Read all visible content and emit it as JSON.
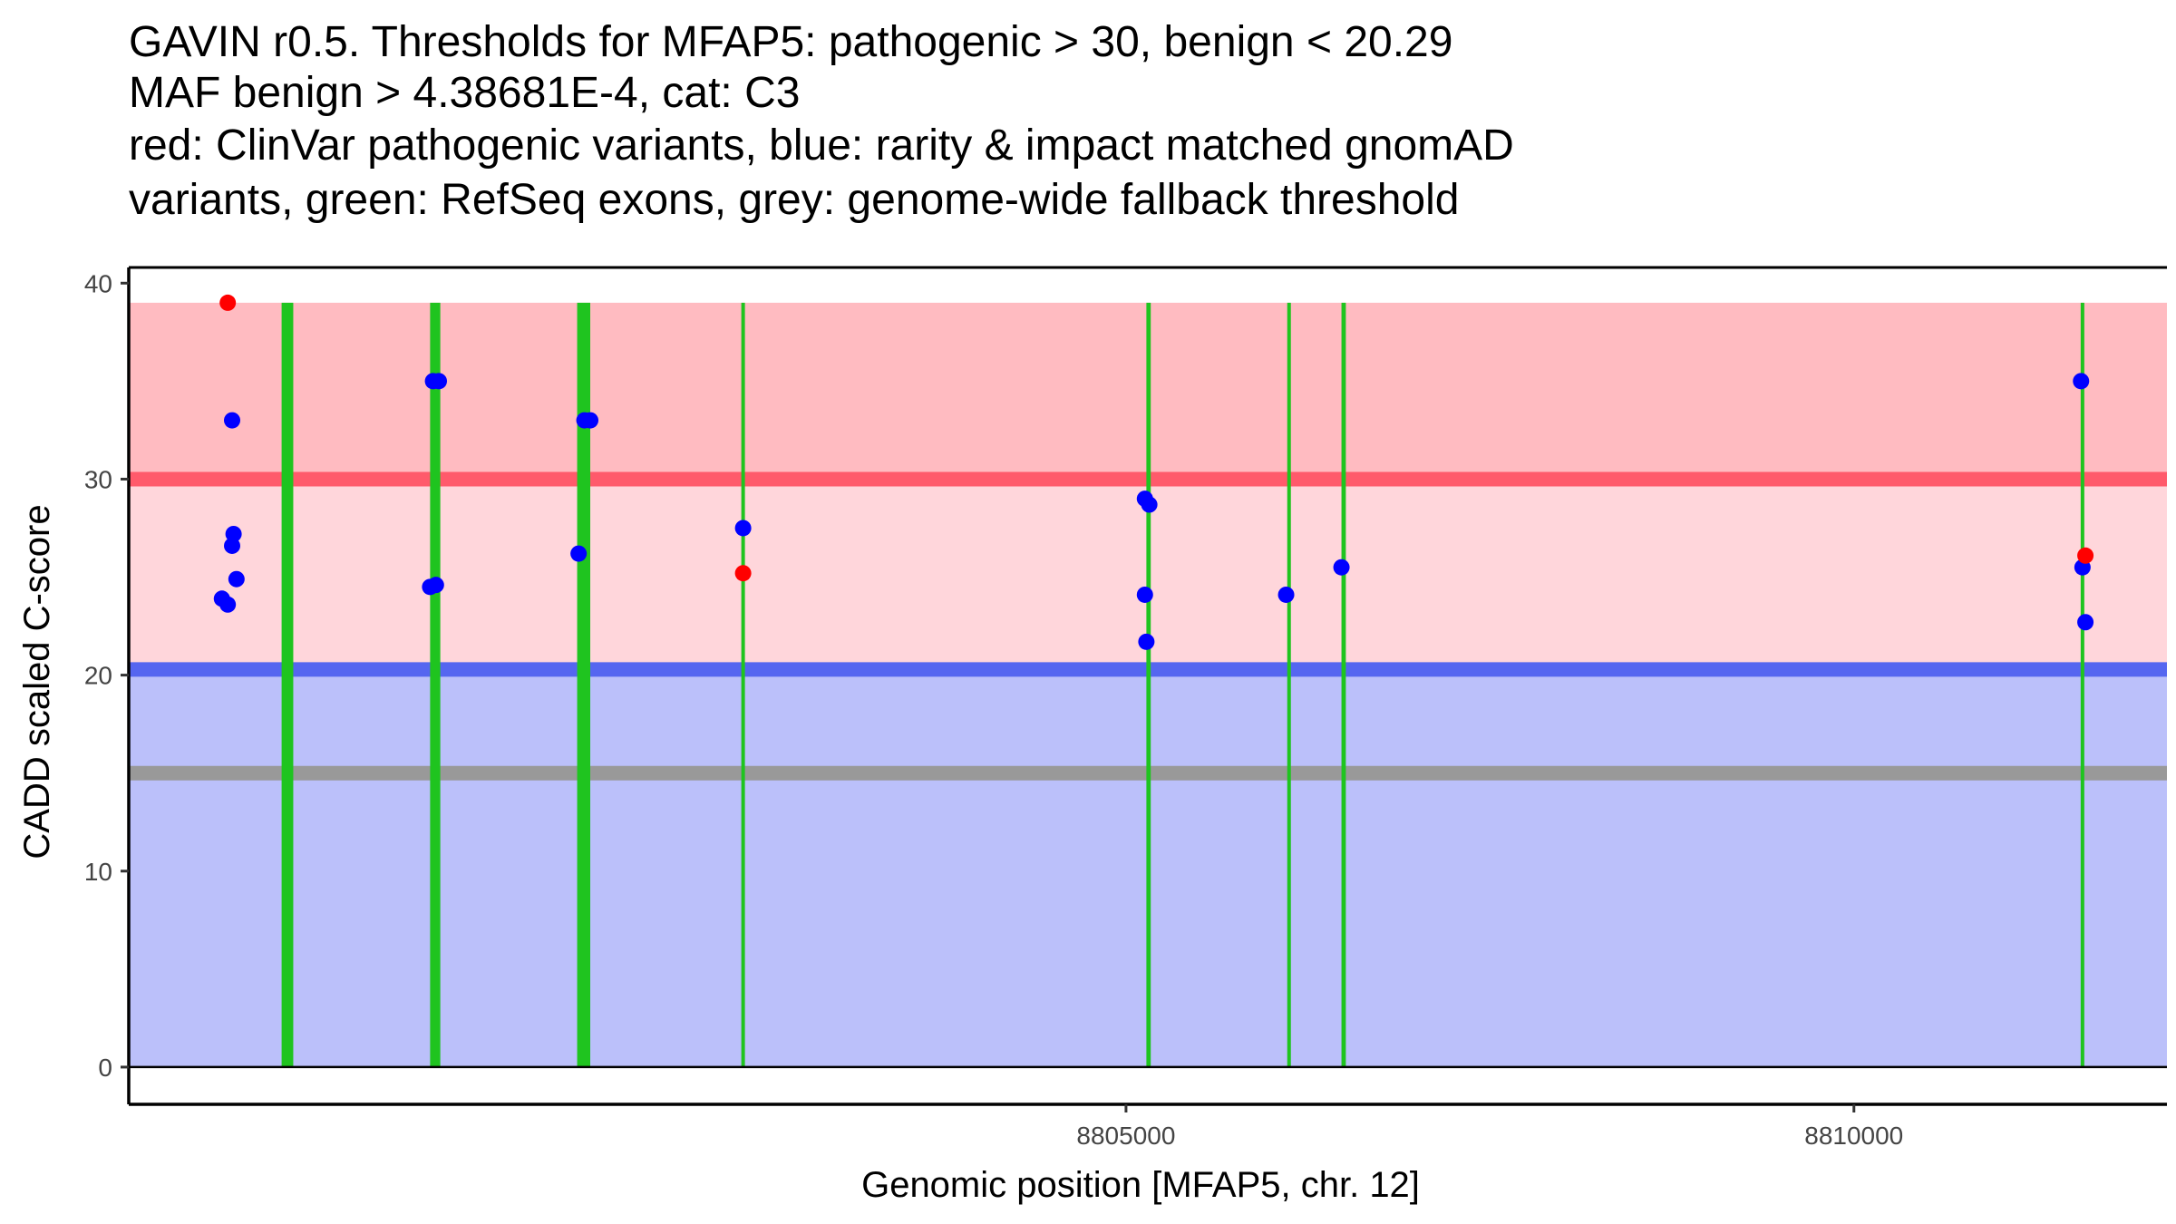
{
  "chart_data": {
    "type": "scatter",
    "title_lines": [
      "GAVIN r0.5. Thresholds for MFAP5: pathogenic > 30, benign < 20.29",
      "MAF benign > 4.38681E-4, cat: C3",
      "red: ClinVar pathogenic variants, blue: rarity & impact matched gnomAD",
      "variants, green: RefSeq exons, grey: genome-wide fallback threshold"
    ],
    "xlabel": "Genomic position [MFAP5, chr. 12]",
    "ylabel": "CADD scaled C-score",
    "xlim": [
      8798150,
      8812150
    ],
    "ylim": [
      -1.9,
      40.8
    ],
    "x_ticks": [
      {
        "value": 8805000,
        "label": "8805000"
      },
      {
        "value": 8810000,
        "label": "8810000"
      }
    ],
    "y_ticks": [
      {
        "value": 0,
        "label": "0"
      },
      {
        "value": 10,
        "label": "10"
      },
      {
        "value": 20,
        "label": "20"
      },
      {
        "value": 30,
        "label": "30"
      },
      {
        "value": 40,
        "label": "40"
      }
    ],
    "regions": [
      {
        "name": "pathogenic-zone",
        "y_from": 30,
        "y_to": 39,
        "color": "#FFBBC1"
      },
      {
        "name": "uncertain-zone",
        "y_from": 20.29,
        "y_to": 30,
        "color": "#FFD6DB"
      },
      {
        "name": "benign-zone",
        "y_from": 0,
        "y_to": 20.29,
        "color": "#BBC0FA"
      }
    ],
    "threshold_lines": [
      {
        "name": "pathogenic-threshold",
        "y": 30,
        "color": "#FF5A6B"
      },
      {
        "name": "benign-threshold",
        "y": 20.29,
        "color": "#5566F0"
      },
      {
        "name": "fallback-threshold",
        "y": 15,
        "color": "#999999"
      }
    ],
    "exons": [
      {
        "start": 8799200,
        "end": 8799280
      },
      {
        "start": 8800220,
        "end": 8800290
      },
      {
        "start": 8801230,
        "end": 8801320
      },
      {
        "start": 8802360,
        "end": 8802380
      },
      {
        "start": 8805140,
        "end": 8805170
      },
      {
        "start": 8806110,
        "end": 8806130
      },
      {
        "start": 8806480,
        "end": 8806510
      },
      {
        "start": 8811560,
        "end": 8811580
      }
    ],
    "series": [
      {
        "name": "ClinVar pathogenic",
        "color": "#FF0000",
        "points": [
          {
            "x": 8798830,
            "y": 39
          },
          {
            "x": 8802370,
            "y": 25.2
          },
          {
            "x": 8811590,
            "y": 26.1
          }
        ]
      },
      {
        "name": "gnomAD matched",
        "color": "#0000FF",
        "points": [
          {
            "x": 8798860,
            "y": 33
          },
          {
            "x": 8798870,
            "y": 27.2
          },
          {
            "x": 8798860,
            "y": 26.6
          },
          {
            "x": 8798890,
            "y": 24.9
          },
          {
            "x": 8798790,
            "y": 23.9
          },
          {
            "x": 8798830,
            "y": 23.6
          },
          {
            "x": 8800240,
            "y": 35
          },
          {
            "x": 8800280,
            "y": 35
          },
          {
            "x": 8800220,
            "y": 24.5
          },
          {
            "x": 8800260,
            "y": 24.6
          },
          {
            "x": 8801280,
            "y": 33
          },
          {
            "x": 8801320,
            "y": 33
          },
          {
            "x": 8801240,
            "y": 26.2
          },
          {
            "x": 8802370,
            "y": 27.5
          },
          {
            "x": 8805130,
            "y": 29
          },
          {
            "x": 8805160,
            "y": 28.7
          },
          {
            "x": 8805130,
            "y": 24.1
          },
          {
            "x": 8805140,
            "y": 21.7
          },
          {
            "x": 8806100,
            "y": 24.1
          },
          {
            "x": 8806480,
            "y": 25.5
          },
          {
            "x": 8811560,
            "y": 35
          },
          {
            "x": 8811570,
            "y": 25.5
          },
          {
            "x": 8811590,
            "y": 22.7
          }
        ]
      }
    ]
  }
}
